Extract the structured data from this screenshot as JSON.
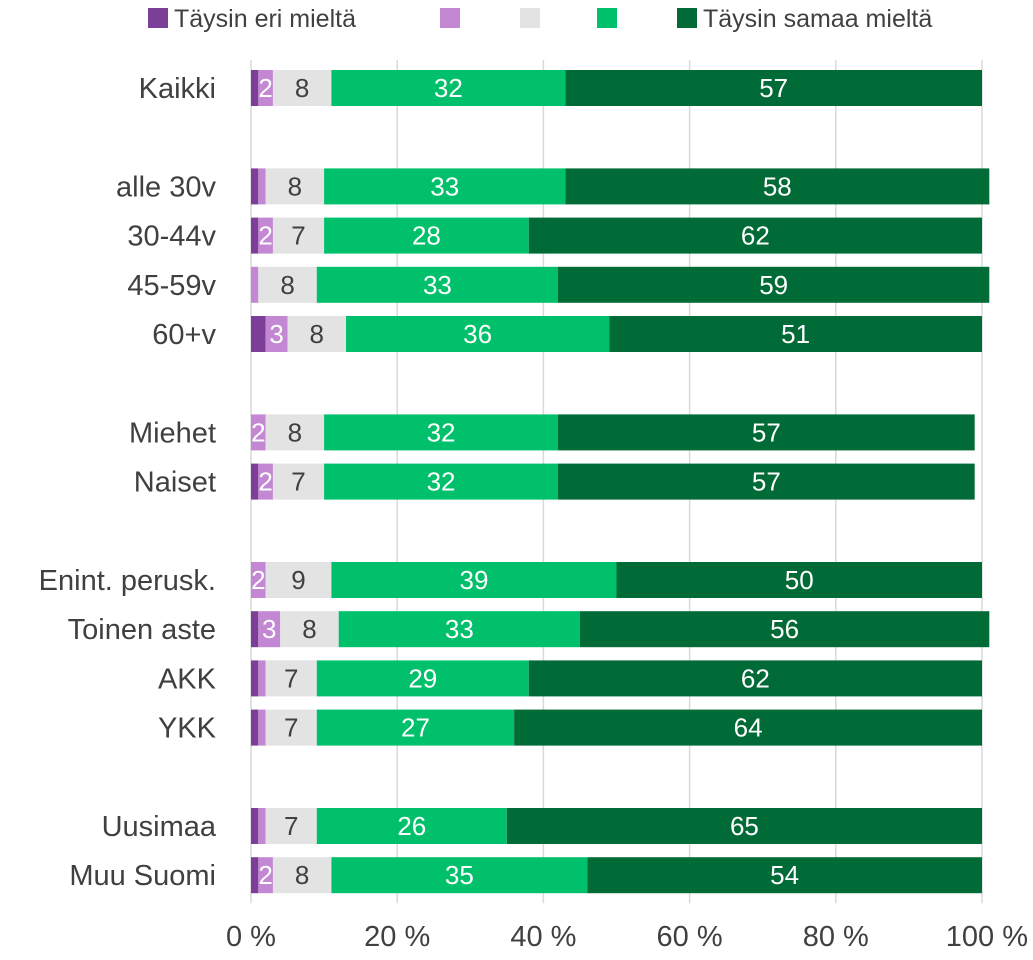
{
  "chart_data": {
    "type": "bar",
    "orientation": "horizontal",
    "stacked": "percent",
    "title": "",
    "xlabel": "",
    "ylabel": "",
    "xlim": [
      0,
      100
    ],
    "x_ticks": [
      "0 %",
      "20 %",
      "40 %",
      "60 %",
      "80 %",
      "100 %"
    ],
    "grid": "vertical",
    "legend_position": "top",
    "legend": [
      {
        "label": "Täysin eri mieltä",
        "color": "#7b3f97"
      },
      {
        "label": "",
        "color": "#c387d3"
      },
      {
        "label": "",
        "color": "#e3e3e3"
      },
      {
        "label": "",
        "color": "#00c06b"
      },
      {
        "label": "Täysin samaa mieltä",
        "color": "#006b36"
      }
    ],
    "categories": [
      "Kaikki",
      "alle 30v",
      "30-44v",
      "45-59v",
      "60+v",
      "Miehet",
      "Naiset",
      "Enint. perusk.",
      "Toinen aste",
      "AKK",
      "YKK",
      "Uusimaa",
      "Muu Suomi"
    ],
    "groups_after_index": [
      0,
      4,
      6,
      10
    ],
    "series": [
      {
        "name": "Täysin eri mieltä",
        "color": "#7b3f97",
        "label_color": "#ffffff",
        "values": [
          1,
          1,
          1,
          0,
          2,
          0,
          1,
          0,
          1,
          1,
          1,
          1,
          1
        ],
        "labels": [
          "",
          "",
          "",
          "",
          "",
          "",
          "",
          "",
          "",
          "",
          "",
          "",
          ""
        ]
      },
      {
        "name": "",
        "color": "#c387d3",
        "label_color": "#ffffff",
        "values": [
          2,
          1,
          2,
          1,
          3,
          2,
          2,
          2,
          3,
          1,
          1,
          1,
          2
        ],
        "labels": [
          "2",
          "",
          "2",
          "",
          "3",
          "2",
          "2",
          "2",
          "3",
          "",
          "",
          "",
          "2"
        ]
      },
      {
        "name": "",
        "color": "#e3e3e3",
        "label_color": "#404040",
        "values": [
          8,
          8,
          7,
          8,
          8,
          8,
          7,
          9,
          8,
          7,
          7,
          7,
          8
        ],
        "labels": [
          "8",
          "8",
          "7",
          "8",
          "8",
          "8",
          "7",
          "9",
          "8",
          "7",
          "7",
          "7",
          "8"
        ]
      },
      {
        "name": "",
        "color": "#00c06b",
        "label_color": "#ffffff",
        "values": [
          32,
          33,
          28,
          33,
          36,
          32,
          32,
          39,
          33,
          29,
          27,
          26,
          35
        ],
        "labels": [
          "32",
          "33",
          "28",
          "33",
          "36",
          "32",
          "32",
          "39",
          "33",
          "29",
          "27",
          "26",
          "35"
        ]
      },
      {
        "name": "Täysin samaa mieltä",
        "color": "#006b36",
        "label_color": "#ffffff",
        "values": [
          57,
          58,
          62,
          59,
          51,
          57,
          57,
          50,
          56,
          62,
          64,
          65,
          54
        ],
        "labels": [
          "57",
          "58",
          "62",
          "59",
          "51",
          "57",
          "57",
          "50",
          "56",
          "62",
          "64",
          "65",
          "54"
        ]
      }
    ]
  }
}
